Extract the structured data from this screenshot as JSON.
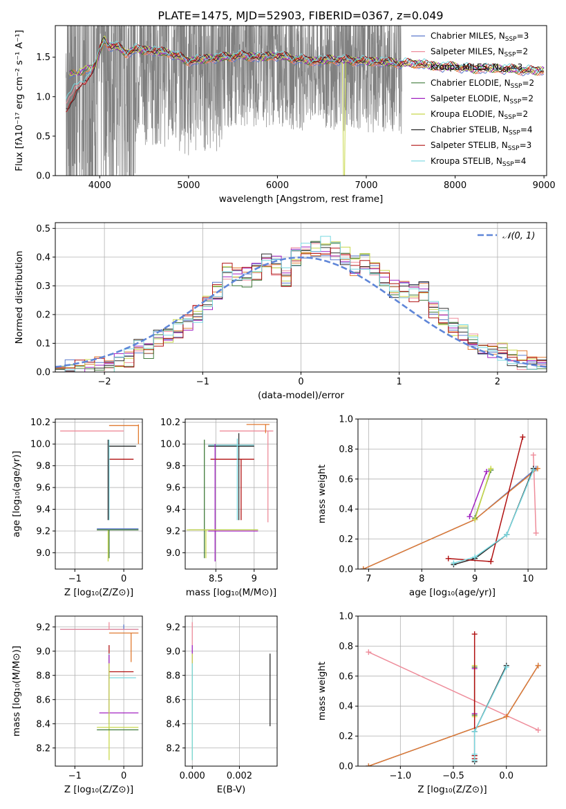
{
  "figure": {
    "title": "PLATE=1475, MJD=52903, FIBERID=0367, z=0.049"
  },
  "models": [
    {
      "name": "Chabrier MILES",
      "nssp": "3",
      "color": "#5a78cc"
    },
    {
      "name": "Salpeter MILES",
      "nssp": "2",
      "color": "#ee8c9a"
    },
    {
      "name": "Kroupa MILES",
      "nssp": "3",
      "color": "#e07a30"
    },
    {
      "name": "Chabrier ELODIE",
      "nssp": "2",
      "color": "#3f7a3a"
    },
    {
      "name": "Salpeter ELODIE",
      "nssp": "2",
      "color": "#a020c0"
    },
    {
      "name": "Kroupa ELODIE",
      "nssp": "2",
      "color": "#c8d84a"
    },
    {
      "name": "Chabrier STELIB",
      "nssp": "4",
      "color": "#2b2b2b"
    },
    {
      "name": "Salpeter STELIB",
      "nssp": "3",
      "color": "#b01010"
    },
    {
      "name": "Kroupa STELIB",
      "nssp": "4",
      "color": "#78d8e0"
    }
  ],
  "chart_data": [
    {
      "id": "spectrum",
      "type": "line",
      "xlabel": "wavelength [Angstrom, rest frame]",
      "ylabel": "Flux [fλ10⁻¹⁷ erg cm⁻² s⁻¹ A⁻¹]",
      "xlim": [
        3500,
        9030
      ],
      "ylim": [
        0,
        1.9
      ],
      "xticks": [
        4000,
        5000,
        6000,
        7000,
        8000,
        9000
      ],
      "yticks": [
        0.0,
        0.5,
        1.0,
        1.5
      ],
      "data_range": [
        3620,
        7400
      ],
      "model_shape": [
        [
          3620,
          1.28
        ],
        [
          3700,
          1.3
        ],
        [
          3800,
          1.33
        ],
        [
          3900,
          1.36
        ],
        [
          3960,
          1.42
        ],
        [
          4000,
          1.58
        ],
        [
          4050,
          1.72
        ],
        [
          4100,
          1.65
        ],
        [
          4200,
          1.63
        ],
        [
          4300,
          1.55
        ],
        [
          4400,
          1.6
        ],
        [
          4600,
          1.58
        ],
        [
          4800,
          1.55
        ],
        [
          5000,
          1.45
        ],
        [
          5200,
          1.48
        ],
        [
          5400,
          1.5
        ],
        [
          5600,
          1.52
        ],
        [
          5800,
          1.5
        ],
        [
          6000,
          1.52
        ],
        [
          6200,
          1.48
        ],
        [
          6400,
          1.45
        ],
        [
          6600,
          1.47
        ],
        [
          6800,
          1.46
        ],
        [
          7000,
          1.45
        ],
        [
          7200,
          1.44
        ],
        [
          7400,
          1.42
        ],
        [
          7600,
          1.42
        ],
        [
          7800,
          1.38
        ],
        [
          8000,
          1.38
        ],
        [
          8200,
          1.35
        ],
        [
          8400,
          1.36
        ],
        [
          8600,
          1.35
        ],
        [
          8800,
          1.33
        ],
        [
          9000,
          1.33
        ]
      ],
      "legend_position": "right"
    },
    {
      "id": "residuals",
      "type": "histogram",
      "xlabel": "(data-model)/error",
      "ylabel": "Normed distribution",
      "xlim": [
        -2.5,
        2.5
      ],
      "ylim": [
        0,
        0.52
      ],
      "xticks": [
        -2,
        -1,
        0,
        1,
        2
      ],
      "yticks": [
        0.0,
        0.1,
        0.2,
        0.3,
        0.4,
        0.5
      ],
      "bin_width": 0.1,
      "bin_edges": [
        -2.5,
        2.5
      ],
      "base_hist": [
        0.01,
        0.01,
        0.01,
        0.015,
        0.02,
        0.02,
        0.03,
        0.05,
        0.09,
        0.08,
        0.12,
        0.12,
        0.15,
        0.18,
        0.2,
        0.24,
        0.28,
        0.35,
        0.33,
        0.33,
        0.35,
        0.38,
        0.37,
        0.33,
        0.4,
        0.42,
        0.42,
        0.44,
        0.42,
        0.4,
        0.37,
        0.38,
        0.36,
        0.33,
        0.29,
        0.29,
        0.27,
        0.28,
        0.22,
        0.19,
        0.16,
        0.13,
        0.11,
        0.09,
        0.08,
        0.07,
        0.05,
        0.04,
        0.03,
        0.025
      ],
      "reference": {
        "label": "𝒩(0, 1)",
        "color": "#5f86d8"
      },
      "legend_position": "top-right"
    },
    {
      "id": "age-vs-Z",
      "type": "errorbar",
      "xlabel": "Z [log₁₀(Z/Z⊙)]",
      "ylabel": "age  [log₁₀(age/yr)]",
      "xlim": [
        -1.4,
        0.38
      ],
      "ylim": [
        8.85,
        10.23
      ],
      "xticks": [
        -1,
        0
      ],
      "yticks": [
        9.0,
        9.2,
        9.4,
        9.6,
        9.8,
        10.0,
        10.2
      ]
    },
    {
      "id": "age-vs-mass",
      "type": "errorbar",
      "xlabel": "mass [log₁₀(M/M⊙)]",
      "ylabel": "",
      "xlim": [
        8.1,
        9.3
      ],
      "ylim": [
        8.85,
        10.23
      ],
      "xticks": [
        8.5,
        9.0
      ],
      "yticks": [
        9.0,
        9.2,
        9.4,
        9.6,
        9.8,
        10.0,
        10.2
      ]
    },
    {
      "id": "weight-vs-age",
      "type": "line",
      "xlabel": "age  [log₁₀(age/yr)]",
      "ylabel": "mass weight",
      "xlim": [
        6.8,
        10.35
      ],
      "ylim": [
        0,
        1.0
      ],
      "xticks": [
        7,
        8,
        9,
        10
      ],
      "yticks": [
        0.0,
        0.2,
        0.4,
        0.6,
        0.8,
        1.0
      ]
    },
    {
      "id": "mass-vs-Z",
      "type": "errorbar",
      "xlabel": "Z [log₁₀(Z/Z⊙)]",
      "ylabel": "mass [log₁₀(M/M⊙)]",
      "xlim": [
        -1.4,
        0.38
      ],
      "ylim": [
        8.05,
        9.29
      ],
      "xticks": [
        -1,
        0
      ],
      "yticks": [
        8.2,
        8.4,
        8.6,
        8.8,
        9.0,
        9.2
      ]
    },
    {
      "id": "mass-vs-ebv",
      "type": "errorbar",
      "xlabel": "E(B-V)",
      "ylabel": "",
      "xlim": [
        -0.0003,
        0.0036
      ],
      "ylim": [
        8.05,
        9.29
      ],
      "xticks": [
        0.0,
        0.002
      ],
      "xticklabels": [
        "0.000",
        "0.002"
      ],
      "yticks": [
        8.2,
        8.4,
        8.6,
        8.8,
        9.0,
        9.2
      ]
    },
    {
      "id": "weight-vs-Z",
      "type": "line",
      "xlabel": "Z [log₁₀(Z/Z⊙)]",
      "ylabel": "mass weight",
      "xlim": [
        -1.4,
        0.38
      ],
      "ylim": [
        0,
        1.0
      ],
      "xticks": [
        -1.0,
        -0.5,
        0.0
      ],
      "xticklabels": [
        "−1.0",
        "−0.5",
        "0.0"
      ],
      "yticks": [
        0.0,
        0.2,
        0.4,
        0.6,
        0.8,
        1.0
      ]
    }
  ],
  "ssp_points": [
    {
      "m": 0,
      "age": [
        6.9,
        9.0,
        10.15
      ],
      "Z": [
        -1.3,
        0.0,
        0.3
      ],
      "w": [
        0.0,
        0.33,
        0.67
      ],
      "mass": [
        8.35,
        8.98,
        9.18
      ]
    },
    {
      "m": 1,
      "age": [
        10.1,
        10.15
      ],
      "Z": [
        -1.3,
        0.3
      ],
      "w": [
        0.76,
        0.24
      ],
      "mass": [
        9.18,
        8.9
      ]
    },
    {
      "m": 2,
      "age": [
        6.9,
        9.0,
        10.18
      ],
      "Z": [
        -1.3,
        0.0,
        0.3
      ],
      "w": [
        0.0,
        0.33,
        0.67
      ],
      "mass": [
        8.37,
        8.95,
        9.15
      ]
    },
    {
      "m": 3,
      "age": [
        9.0,
        9.3
      ],
      "Z": [
        -0.3,
        -0.3
      ],
      "w": [
        0.34,
        0.66
      ],
      "mass": [
        8.35,
        8.92
      ]
    },
    {
      "m": 4,
      "age": [
        8.9,
        9.22
      ],
      "Z": [
        -0.3,
        -0.3
      ],
      "w": [
        0.35,
        0.65
      ],
      "mass": [
        8.49,
        8.95
      ]
    },
    {
      "m": 5,
      "age": [
        9.0,
        9.3
      ],
      "Z": [
        -0.3,
        -0.3
      ],
      "w": [
        0.33,
        0.67
      ],
      "mass": [
        8.37,
        8.9
      ]
    },
    {
      "m": 6,
      "age": [
        8.6,
        9.0,
        9.6,
        10.1
      ],
      "Z": [
        -0.3,
        -0.3,
        -0.3,
        0.0
      ],
      "w": [
        0.03,
        0.07,
        0.23,
        0.67
      ],
      "mass": [
        8.35,
        8.5,
        8.78,
        8.98
      ]
    },
    {
      "m": 7,
      "age": [
        8.5,
        9.3,
        9.9
      ],
      "Z": [
        -0.3,
        -0.3,
        -0.3
      ],
      "w": [
        0.07,
        0.05,
        0.88
      ],
      "mass": [
        8.4,
        8.6,
        8.83
      ]
    },
    {
      "m": 8,
      "age": [
        8.6,
        9.0,
        9.6,
        10.1
      ],
      "Z": [
        -0.3,
        -0.3,
        -0.3,
        0.0
      ],
      "w": [
        0.04,
        0.08,
        0.23,
        0.66
      ],
      "mass": [
        8.35,
        8.5,
        8.77,
        8.97
      ]
    }
  ]
}
